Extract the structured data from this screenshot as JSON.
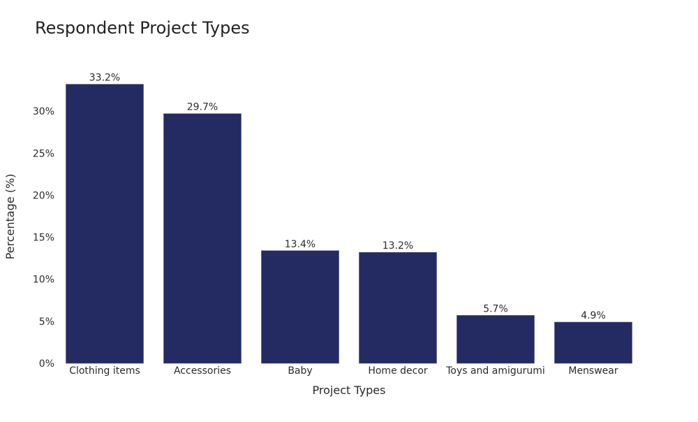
{
  "chart_data": {
    "type": "bar",
    "title": "Respondent Project Types",
    "xlabel": "Project Types",
    "ylabel": "Percentage (%)",
    "categories": [
      "Clothing items",
      "Accessories",
      "Baby",
      "Home decor",
      "Toys and amigurumi",
      "Menswear"
    ],
    "values": [
      33.2,
      29.7,
      13.4,
      13.2,
      5.7,
      4.9
    ],
    "data_labels": [
      "33.2%",
      "29.7%",
      "13.4%",
      "13.2%",
      "5.7%",
      "4.9%"
    ],
    "ylim": [
      0,
      35
    ],
    "yticks": [
      0,
      5,
      10,
      15,
      20,
      25,
      30
    ],
    "ytick_labels": [
      "0%",
      "5%",
      "10%",
      "15%",
      "20%",
      "25%",
      "30%"
    ],
    "grid": false,
    "legend": "none",
    "bar_color": "#232b62"
  }
}
